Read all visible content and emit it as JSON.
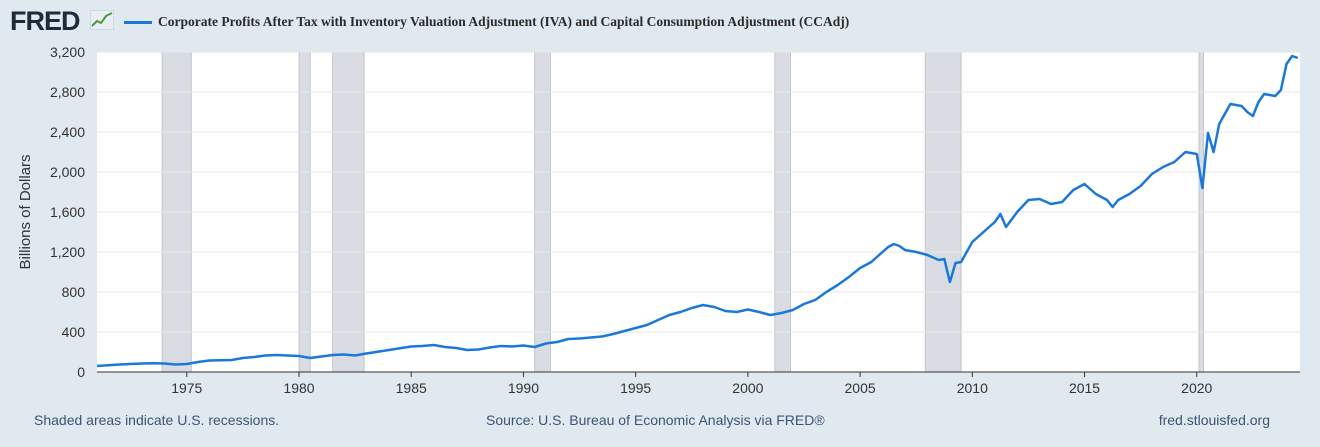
{
  "header": {
    "logo_text": "FRED",
    "logo_icon": "line-graph-icon",
    "series_title": "Corporate Profits After Tax with Inventory Valuation Adjustment (IVA) and Capital Consumption Adjustment (CCAdj)"
  },
  "footer": {
    "recession_note": "Shaded areas indicate U.S. recessions.",
    "source": "Source: U.S. Bureau of Economic Analysis via FRED®",
    "site": "fred.stlouisfed.org"
  },
  "colors": {
    "line": "#1c78d8",
    "recession": "#d9dde3",
    "background": "#e1e9f0",
    "plot_bg": "#ffffff"
  },
  "chart_data": {
    "type": "line",
    "title": "Corporate Profits After Tax with Inventory Valuation Adjustment (IVA) and Capital Consumption Adjustment (CCAdj)",
    "ylabel": "Billions of Dollars",
    "xlabel": "",
    "xlim": [
      1971.0,
      2024.6
    ],
    "ylim": [
      0,
      3200
    ],
    "y_ticks": [
      0,
      400,
      800,
      1200,
      1600,
      2000,
      2400,
      2800,
      3200
    ],
    "y_tick_labels": [
      "0",
      "400",
      "800",
      "1,200",
      "1,600",
      "2,000",
      "2,400",
      "2,800",
      "3,200"
    ],
    "x_ticks": [
      1975,
      1980,
      1985,
      1990,
      1995,
      2000,
      2005,
      2010,
      2015,
      2020
    ],
    "x_tick_labels": [
      "1975",
      "1980",
      "1985",
      "1990",
      "1995",
      "2000",
      "2005",
      "2010",
      "2015",
      "2020"
    ],
    "grid": true,
    "legend": "top-left",
    "recessions": [
      [
        1973.9,
        1975.2
      ],
      [
        1980.0,
        1980.5
      ],
      [
        1981.5,
        1982.9
      ],
      [
        1990.5,
        1991.2
      ],
      [
        2001.2,
        2001.9
      ],
      [
        2007.9,
        2009.5
      ],
      [
        2020.1,
        2020.3
      ]
    ],
    "series": [
      {
        "x": [
          1971.0,
          1972.0,
          1973.0,
          1973.5,
          1974.0,
          1974.5,
          1975.0,
          1975.5,
          1976.0,
          1977.0,
          1977.5,
          1978.0,
          1978.5,
          1979.0,
          1979.5,
          1980.0,
          1980.5,
          1981.0,
          1981.5,
          1982.0,
          1982.5,
          1983.0,
          1984.0,
          1985.0,
          1985.5,
          1986.0,
          1986.5,
          1987.0,
          1987.5,
          1988.0,
          1988.5,
          1989.0,
          1989.5,
          1990.0,
          1990.5,
          1991.0,
          1991.5,
          1992.0,
          1992.5,
          1993.0,
          1993.5,
          1994.0,
          1994.5,
          1995.0,
          1995.5,
          1996.0,
          1996.5,
          1997.0,
          1997.5,
          1998.0,
          1998.5,
          1999.0,
          1999.5,
          2000.0,
          2000.5,
          2001.0,
          2001.5,
          2002.0,
          2002.5,
          2003.0,
          2003.5,
          2004.0,
          2004.5,
          2005.0,
          2005.5,
          2006.0,
          2006.25,
          2006.5,
          2006.75,
          2007.0,
          2007.5,
          2008.0,
          2008.5,
          2008.75,
          2009.0,
          2009.25,
          2009.5,
          2010.0,
          2010.5,
          2011.0,
          2011.25,
          2011.5,
          2012.0,
          2012.5,
          2013.0,
          2013.5,
          2014.0,
          2014.25,
          2014.5,
          2015.0,
          2015.5,
          2016.0,
          2016.25,
          2016.5,
          2017.0,
          2017.5,
          2018.0,
          2018.5,
          2019.0,
          2019.5,
          2020.0,
          2020.25,
          2020.5,
          2020.75,
          2021.0,
          2021.5,
          2022.0,
          2022.25,
          2022.5,
          2022.75,
          2023.0,
          2023.5,
          2023.75,
          2024.0,
          2024.25,
          2024.5
        ],
        "values": [
          60,
          75,
          85,
          88,
          85,
          75,
          80,
          100,
          115,
          120,
          140,
          150,
          165,
          170,
          165,
          160,
          140,
          155,
          170,
          175,
          165,
          185,
          220,
          255,
          260,
          270,
          250,
          240,
          220,
          225,
          245,
          260,
          255,
          265,
          250,
          285,
          300,
          330,
          335,
          345,
          355,
          380,
          410,
          440,
          470,
          520,
          570,
          600,
          640,
          670,
          650,
          610,
          600,
          625,
          600,
          570,
          590,
          620,
          680,
          720,
          800,
          870,
          950,
          1040,
          1100,
          1200,
          1250,
          1280,
          1260,
          1220,
          1200,
          1170,
          1120,
          1130,
          900,
          1090,
          1100,
          1300,
          1400,
          1500,
          1580,
          1450,
          1600,
          1720,
          1730,
          1680,
          1700,
          1760,
          1820,
          1880,
          1780,
          1720,
          1650,
          1720,
          1780,
          1860,
          1980,
          2050,
          2100,
          2200,
          2180,
          1840,
          2390,
          2200,
          2480,
          2680,
          2660,
          2600,
          2560,
          2700,
          2780,
          2760,
          2820,
          3080,
          3160,
          3140
        ]
      }
    ]
  }
}
